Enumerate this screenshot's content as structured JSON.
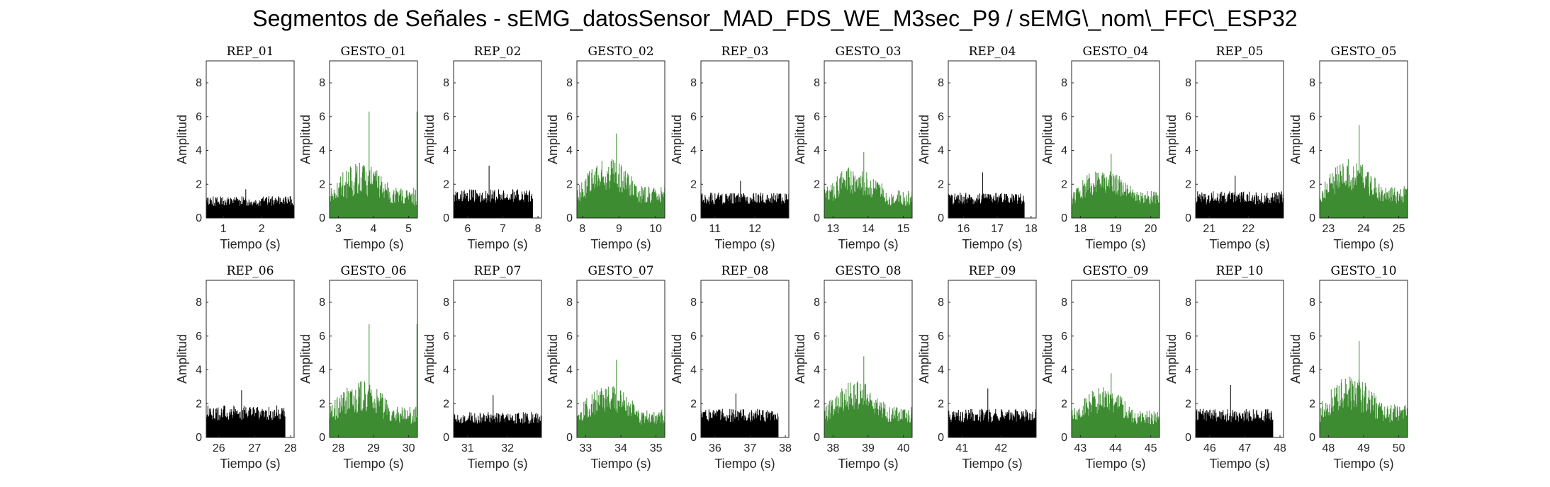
{
  "figure_title": "Segmentos de Señales - sEMG_datosSensor_MAD_FDS_WE_M3sec_P9 / sEMG\\_nom\\_FFC\\_ESP32",
  "colors": {
    "rep": "#000000",
    "gesto": "#3d8c31"
  },
  "chart_data": [
    {
      "title": "REP_01",
      "type": "bar",
      "color": "#000000",
      "xlim": [
        0.55,
        2.85
      ],
      "xticks": [
        1,
        2
      ],
      "ylim": [
        0,
        9.3
      ],
      "yticks": [
        0,
        2,
        4,
        6,
        8
      ],
      "xlabel": "Tiempo (s)",
      "ylabel": "Amplitud",
      "x_start": 0.55,
      "x_end": 2.85,
      "base": 0.7,
      "spread": 0.6,
      "peak_max": 1.7
    },
    {
      "title": "GESTO_01",
      "type": "bar",
      "color": "#3d8c31",
      "xlim": [
        2.75,
        5.25
      ],
      "xticks": [
        3,
        4,
        5
      ],
      "ylim": [
        0,
        9.3
      ],
      "yticks": [
        0,
        2,
        4,
        6,
        8
      ],
      "xlabel": "Tiempo (s)",
      "ylabel": "Amplitud",
      "x_start": 2.75,
      "x_end": 5.25,
      "base": 1.0,
      "spread": 1.6,
      "peak_max": 6.3
    },
    {
      "title": "REP_02",
      "type": "bar",
      "color": "#000000",
      "xlim": [
        5.6,
        8.1
      ],
      "xticks": [
        6,
        7,
        8
      ],
      "ylim": [
        0,
        9.3
      ],
      "yticks": [
        0,
        2,
        4,
        6,
        8
      ],
      "xlabel": "Tiempo (s)",
      "ylabel": "Amplitud",
      "x_start": 5.6,
      "x_end": 7.85,
      "base": 0.9,
      "spread": 0.8,
      "peak_max": 3.1
    },
    {
      "title": "GESTO_02",
      "type": "bar",
      "color": "#3d8c31",
      "xlim": [
        7.85,
        10.25
      ],
      "xticks": [
        8,
        9,
        10
      ],
      "ylim": [
        0,
        9.3
      ],
      "yticks": [
        0,
        2,
        4,
        6,
        8
      ],
      "xlabel": "Tiempo (s)",
      "ylabel": "Amplitud",
      "x_start": 7.85,
      "x_end": 10.25,
      "base": 1.2,
      "spread": 1.5,
      "peak_max": 5.0
    },
    {
      "title": "REP_03",
      "type": "bar",
      "color": "#000000",
      "xlim": [
        10.65,
        12.85
      ],
      "xticks": [
        11,
        12
      ],
      "ylim": [
        0,
        9.3
      ],
      "yticks": [
        0,
        2,
        4,
        6,
        8
      ],
      "xlabel": "Tiempo (s)",
      "ylabel": "Amplitud",
      "x_start": 10.65,
      "x_end": 12.85,
      "base": 0.8,
      "spread": 0.7,
      "peak_max": 2.2
    },
    {
      "title": "GESTO_03",
      "type": "bar",
      "color": "#3d8c31",
      "xlim": [
        12.75,
        15.25
      ],
      "xticks": [
        13,
        14,
        15
      ],
      "ylim": [
        0,
        9.3
      ],
      "yticks": [
        0,
        2,
        4,
        6,
        8
      ],
      "xlabel": "Tiempo (s)",
      "ylabel": "Amplitud",
      "x_start": 12.75,
      "x_end": 15.25,
      "base": 1.0,
      "spread": 1.4,
      "peak_max": 3.9
    },
    {
      "title": "REP_04",
      "type": "bar",
      "color": "#000000",
      "xlim": [
        15.55,
        18.15
      ],
      "xticks": [
        16,
        17,
        18
      ],
      "ylim": [
        0,
        9.3
      ],
      "yticks": [
        0,
        2,
        4,
        6,
        8
      ],
      "xlabel": "Tiempo (s)",
      "ylabel": "Amplitud",
      "x_start": 15.55,
      "x_end": 17.8,
      "base": 0.8,
      "spread": 0.7,
      "peak_max": 2.7
    },
    {
      "title": "GESTO_04",
      "type": "bar",
      "color": "#3d8c31",
      "xlim": [
        17.75,
        20.25
      ],
      "xticks": [
        18,
        19,
        20
      ],
      "ylim": [
        0,
        9.3
      ],
      "yticks": [
        0,
        2,
        4,
        6,
        8
      ],
      "xlabel": "Tiempo (s)",
      "ylabel": "Amplitud",
      "x_start": 17.75,
      "x_end": 20.25,
      "base": 1.1,
      "spread": 1.2,
      "peak_max": 3.8
    },
    {
      "title": "REP_05",
      "type": "bar",
      "color": "#000000",
      "xlim": [
        20.65,
        22.9
      ],
      "xticks": [
        21,
        22
      ],
      "ylim": [
        0,
        9.3
      ],
      "yticks": [
        0,
        2,
        4,
        6,
        8
      ],
      "xlabel": "Tiempo (s)",
      "ylabel": "Amplitud",
      "x_start": 20.65,
      "x_end": 22.9,
      "base": 0.8,
      "spread": 0.8,
      "peak_max": 2.5
    },
    {
      "title": "GESTO_05",
      "type": "bar",
      "color": "#3d8c31",
      "xlim": [
        22.75,
        25.25
      ],
      "xticks": [
        23,
        24,
        25
      ],
      "ylim": [
        0,
        9.3
      ],
      "yticks": [
        0,
        2,
        4,
        6,
        8
      ],
      "xlabel": "Tiempo (s)",
      "ylabel": "Amplitud",
      "x_start": 22.75,
      "x_end": 25.25,
      "base": 1.2,
      "spread": 1.5,
      "peak_max": 5.5
    },
    {
      "title": "REP_06",
      "type": "bar",
      "color": "#000000",
      "xlim": [
        25.65,
        28.1
      ],
      "xticks": [
        26,
        27,
        28
      ],
      "ylim": [
        0,
        9.3
      ],
      "yticks": [
        0,
        2,
        4,
        6,
        8
      ],
      "xlabel": "Tiempo (s)",
      "ylabel": "Amplitud",
      "x_start": 25.65,
      "x_end": 27.85,
      "base": 1.0,
      "spread": 0.9,
      "peak_max": 2.8
    },
    {
      "title": "GESTO_06",
      "type": "bar",
      "color": "#3d8c31",
      "xlim": [
        27.75,
        30.25
      ],
      "xticks": [
        28,
        29,
        30
      ],
      "ylim": [
        0,
        9.3
      ],
      "yticks": [
        0,
        2,
        4,
        6,
        8
      ],
      "xlabel": "Tiempo (s)",
      "ylabel": "Amplitud",
      "x_start": 27.75,
      "x_end": 30.25,
      "base": 1.1,
      "spread": 1.5,
      "peak_max": 6.7
    },
    {
      "title": "REP_07",
      "type": "bar",
      "color": "#000000",
      "xlim": [
        30.65,
        32.85
      ],
      "xticks": [
        31,
        32
      ],
      "ylim": [
        0,
        9.3
      ],
      "yticks": [
        0,
        2,
        4,
        6,
        8
      ],
      "xlabel": "Tiempo (s)",
      "ylabel": "Amplitud",
      "x_start": 30.65,
      "x_end": 32.85,
      "base": 0.8,
      "spread": 0.7,
      "peak_max": 2.5
    },
    {
      "title": "GESTO_07",
      "type": "bar",
      "color": "#3d8c31",
      "xlim": [
        32.75,
        35.25
      ],
      "xticks": [
        33,
        34,
        35
      ],
      "ylim": [
        0,
        9.3
      ],
      "yticks": [
        0,
        2,
        4,
        6,
        8
      ],
      "xlabel": "Tiempo (s)",
      "ylabel": "Amplitud",
      "x_start": 32.75,
      "x_end": 35.25,
      "base": 1.1,
      "spread": 1.3,
      "peak_max": 4.6
    },
    {
      "title": "REP_08",
      "type": "bar",
      "color": "#000000",
      "xlim": [
        35.6,
        38.1
      ],
      "xticks": [
        36,
        37,
        38
      ],
      "ylim": [
        0,
        9.3
      ],
      "yticks": [
        0,
        2,
        4,
        6,
        8
      ],
      "xlabel": "Tiempo (s)",
      "ylabel": "Amplitud",
      "x_start": 35.6,
      "x_end": 37.8,
      "base": 0.9,
      "spread": 0.8,
      "peak_max": 2.6
    },
    {
      "title": "GESTO_08",
      "type": "bar",
      "color": "#3d8c31",
      "xlim": [
        37.75,
        40.25
      ],
      "xticks": [
        38,
        39,
        40
      ],
      "ylim": [
        0,
        9.3
      ],
      "yticks": [
        0,
        2,
        4,
        6,
        8
      ],
      "xlabel": "Tiempo (s)",
      "ylabel": "Amplitud",
      "x_start": 37.75,
      "x_end": 40.25,
      "base": 1.2,
      "spread": 1.4,
      "peak_max": 4.8
    },
    {
      "title": "REP_09",
      "type": "bar",
      "color": "#000000",
      "xlim": [
        40.65,
        42.9
      ],
      "xticks": [
        41,
        42
      ],
      "ylim": [
        0,
        9.3
      ],
      "yticks": [
        0,
        2,
        4,
        6,
        8
      ],
      "xlabel": "Tiempo (s)",
      "ylabel": "Amplitud",
      "x_start": 40.65,
      "x_end": 42.9,
      "base": 0.9,
      "spread": 0.8,
      "peak_max": 2.9
    },
    {
      "title": "GESTO_09",
      "type": "bar",
      "color": "#3d8c31",
      "xlim": [
        42.75,
        45.25
      ],
      "xticks": [
        43,
        44,
        45
      ],
      "ylim": [
        0,
        9.3
      ],
      "yticks": [
        0,
        2,
        4,
        6,
        8
      ],
      "xlabel": "Tiempo (s)",
      "ylabel": "Amplitud",
      "x_start": 42.75,
      "x_end": 45.25,
      "base": 1.1,
      "spread": 1.2,
      "peak_max": 3.8
    },
    {
      "title": "REP_10",
      "type": "bar",
      "color": "#000000",
      "xlim": [
        45.6,
        48.1
      ],
      "xticks": [
        46,
        47,
        48
      ],
      "ylim": [
        0,
        9.3
      ],
      "yticks": [
        0,
        2,
        4,
        6,
        8
      ],
      "xlabel": "Tiempo (s)",
      "ylabel": "Amplitud",
      "x_start": 45.6,
      "x_end": 47.8,
      "base": 0.9,
      "spread": 0.8,
      "peak_max": 3.1
    },
    {
      "title": "GESTO_10",
      "type": "bar",
      "color": "#3d8c31",
      "xlim": [
        47.75,
        50.25
      ],
      "xticks": [
        48,
        49,
        50
      ],
      "ylim": [
        0,
        9.3
      ],
      "yticks": [
        0,
        2,
        4,
        6,
        8
      ],
      "xlabel": "Tiempo (s)",
      "ylabel": "Amplitud",
      "x_start": 47.75,
      "x_end": 50.25,
      "base": 1.2,
      "spread": 1.6,
      "peak_max": 5.7
    }
  ]
}
